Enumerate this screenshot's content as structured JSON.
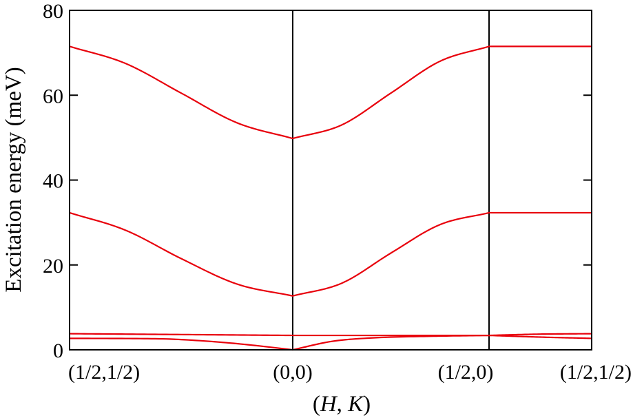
{
  "chart_data": {
    "type": "line",
    "title": "",
    "xlabel": {
      "H": "H",
      "sep": ", ",
      "K": "K"
    },
    "ylabel": "Excitation energy (meV)",
    "ylim": [
      0,
      80
    ],
    "yticks": [
      "0",
      "20",
      "40",
      "60",
      "80"
    ],
    "x_points": [
      "(1/2,1/2)",
      "(0,0)",
      "(1/2,0)",
      "(1/2,1/2)"
    ],
    "dividers_at": [
      "(0,0)",
      "(1/2,0)"
    ],
    "grid": false,
    "line_color": "#e8000b",
    "divider_color": "#000000",
    "series": [
      {
        "segments": [
          {
            "from": "(1/2,1/2)",
            "to": "(0,0)",
            "x": [
              0,
              0.25,
              0.5,
              0.75,
              1
            ],
            "y": [
              71.5,
              67.5,
              60.5,
              53.5,
              49.8
            ]
          },
          {
            "from": "(0,0)",
            "to": "(1/2,0)",
            "x": [
              0,
              0.25,
              0.5,
              0.75,
              1
            ],
            "y": [
              49.8,
              53.0,
              60.5,
              68.0,
              71.5
            ]
          },
          {
            "from": "(1/2,0)",
            "to": "(1/2,1/2)",
            "x": [
              0,
              1
            ],
            "y": [
              71.5,
              71.5
            ]
          }
        ]
      },
      {
        "segments": [
          {
            "from": "(1/2,1/2)",
            "to": "(0,0)",
            "x": [
              0,
              0.25,
              0.5,
              0.75,
              1
            ],
            "y": [
              32.3,
              28.2,
              21.5,
              15.5,
              12.7
            ]
          },
          {
            "from": "(0,0)",
            "to": "(1/2,0)",
            "x": [
              0,
              0.25,
              0.5,
              0.75,
              1
            ],
            "y": [
              12.7,
              15.7,
              22.8,
              29.5,
              32.3
            ]
          },
          {
            "from": "(1/2,0)",
            "to": "(1/2,1/2)",
            "x": [
              0,
              1
            ],
            "y": [
              32.3,
              32.3
            ]
          }
        ]
      },
      {
        "segments": [
          {
            "from": "(1/2,1/2)",
            "to": "(0,0)",
            "x": [
              0,
              0.5,
              1
            ],
            "y": [
              3.8,
              3.6,
              3.4
            ]
          },
          {
            "from": "(0,0)",
            "to": "(1/2,0)",
            "x": [
              0,
              0.5,
              1
            ],
            "y": [
              3.4,
              3.4,
              3.4
            ]
          },
          {
            "from": "(1/2,0)",
            "to": "(1/2,1/2)",
            "x": [
              0,
              0.5,
              1
            ],
            "y": [
              3.4,
              3.7,
              3.8
            ]
          }
        ]
      },
      {
        "segments": [
          {
            "from": "(1/2,1/2)",
            "to": "(0,0)",
            "x": [
              0,
              0.4,
              0.6,
              0.8,
              1
            ],
            "y": [
              2.7,
              2.6,
              2.1,
              1.2,
              0.0
            ]
          },
          {
            "from": "(0,0)",
            "to": "(1/2,0)",
            "x": [
              0,
              0.2,
              0.4,
              0.7,
              1
            ],
            "y": [
              0.0,
              2.0,
              2.8,
              3.2,
              3.4
            ]
          },
          {
            "from": "(1/2,0)",
            "to": "(1/2,1/2)",
            "x": [
              0,
              0.5,
              1
            ],
            "y": [
              3.4,
              3.0,
              2.7
            ]
          }
        ]
      }
    ]
  }
}
